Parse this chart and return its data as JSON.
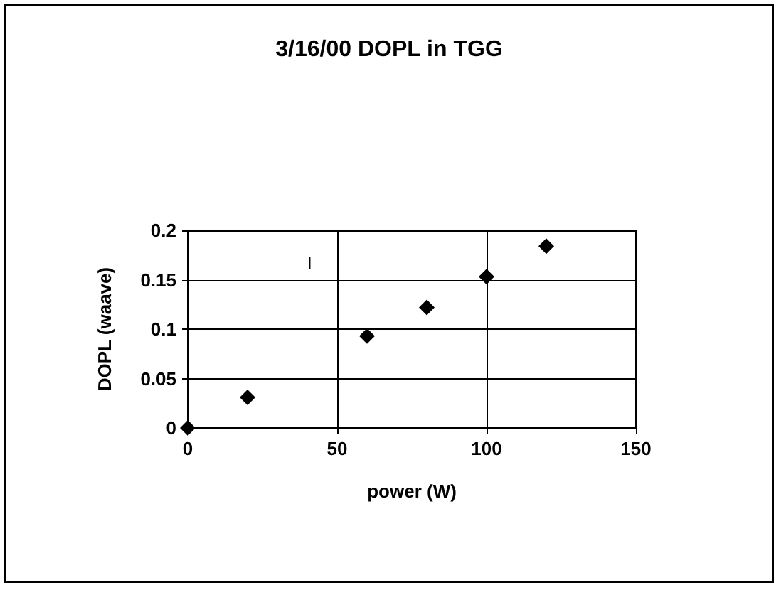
{
  "chart_data": {
    "type": "scatter",
    "title": "3/16/00 DOPL in TGG",
    "xlabel": "power (W)",
    "ylabel": "DOPL (waave)",
    "x": [
      0,
      20,
      60,
      80,
      100,
      120
    ],
    "series": [
      {
        "color": "#000000",
        "values": [
          0,
          0.031,
          0.093,
          0.122,
          0.153,
          0.184
        ]
      }
    ],
    "xlim": [
      0,
      150
    ],
    "xticks": [
      0,
      50,
      100,
      150
    ],
    "ylim": [
      0,
      0.2
    ],
    "yticks": [
      0,
      0.05,
      0.1,
      0.15,
      0.2
    ],
    "grid": true,
    "marker": "diamond",
    "annotations": [
      "I"
    ]
  }
}
